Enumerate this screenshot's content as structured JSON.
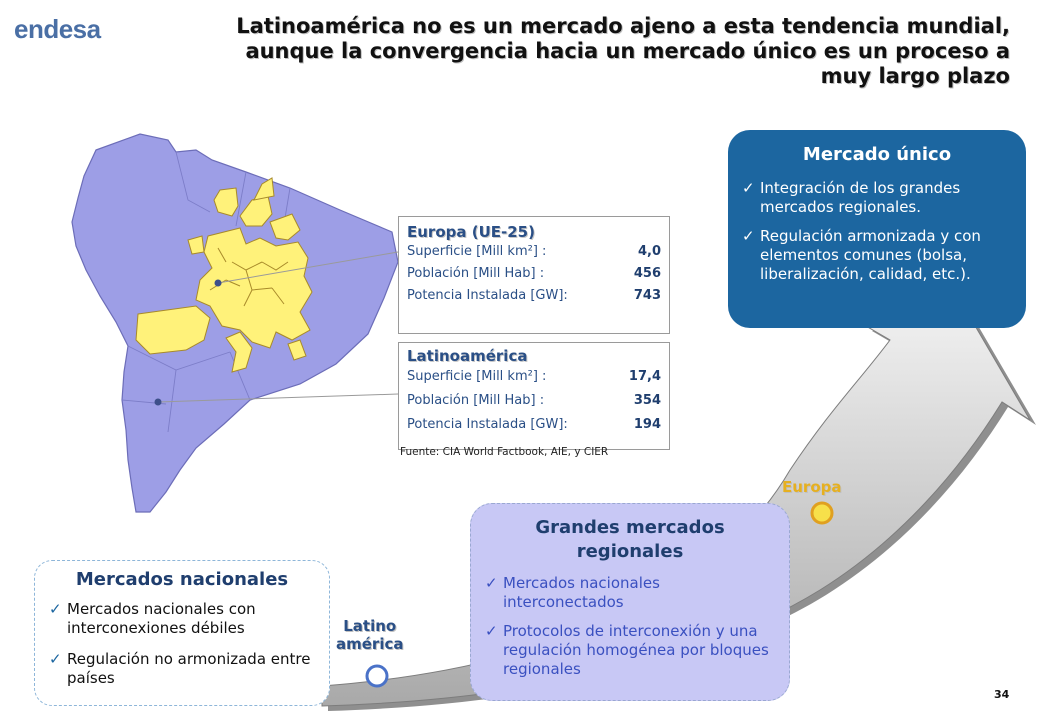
{
  "logo": "endesa",
  "title": {
    "line1": "Latinoamérica no es un mercado ajeno a esta tendencia mundial,",
    "line2": "aunque la convergencia hacia un mercado único es un proceso a",
    "line3": "muy largo plazo"
  },
  "europa_box": {
    "heading": "Europa (UE-25)",
    "rows": [
      {
        "label": "Superficie [Mill km²] :",
        "value": "4,0"
      },
      {
        "label": "Población [Mill Hab]  :",
        "value": "456"
      },
      {
        "label": "Potencia Instalada [GW]:",
        "value": "743"
      }
    ]
  },
  "latam_box": {
    "heading": "Latinoamérica",
    "rows": [
      {
        "label": "Superficie [Mill km²] :",
        "value": "17,4"
      },
      {
        "label": "Población [Mill Hab]  :",
        "value": "354"
      },
      {
        "label": "Potencia Instalada [GW]:",
        "value": "194"
      }
    ]
  },
  "source": "Fuente: CIA World Factbook, AIE, y CIER",
  "mercado_unico": {
    "title": "Mercado único",
    "items": [
      "Integración de los grandes mercados regionales.",
      "Regulación armonizada y con elementos comunes (bolsa, liberalización, calidad, etc.)."
    ]
  },
  "grandes_mercados": {
    "title_line1": "Grandes mercados",
    "title_line2": "regionales",
    "items": [
      "Mercados nacionales interconectados",
      "Protocolos de interconexión y una regulación homogénea por bloques regionales"
    ]
  },
  "mercados_nacionales": {
    "title": "Mercados nacionales",
    "items": [
      "Mercados nacionales con interconexiones débiles",
      "Regulación no armonizada entre países"
    ]
  },
  "markers": {
    "europa": "Europa",
    "latam_line1": "Latino",
    "latam_line2": "américa"
  },
  "check_glyph": "✓",
  "page_number": "34",
  "colors": {
    "map_fill": "#9d9ee6",
    "europe_fill": "#fff27a",
    "panel_blue": "#1c66a0",
    "panel_lavender": "#c8c8f5",
    "marker_europa": "#f7e04a",
    "marker_latam": "#4a72c8"
  }
}
